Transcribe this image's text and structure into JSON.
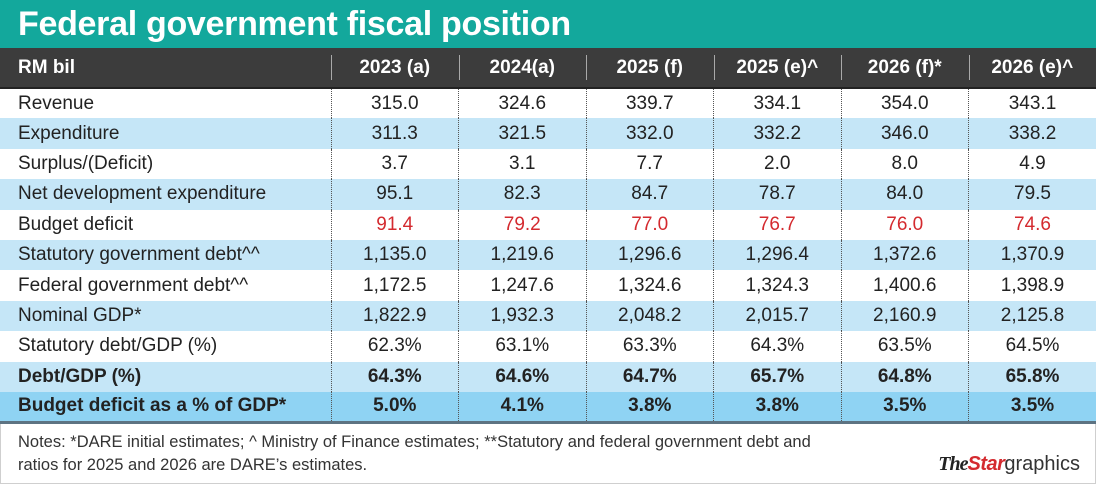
{
  "title": "Federal government fiscal position",
  "chart_data": {
    "type": "table",
    "title": "Federal government fiscal position",
    "unit_label": "RM bil",
    "columns": [
      "2023 (a)",
      "2024(a)",
      "2025 (f)",
      "2025 (e)^",
      "2026 (f)*",
      "2026 (e)^"
    ],
    "rows": [
      {
        "label": "Revenue",
        "values": [
          "315.0",
          "324.6",
          "339.7",
          "334.1",
          "354.0",
          "343.1"
        ]
      },
      {
        "label": "Expenditure",
        "values": [
          "311.3",
          "321.5",
          "332.0",
          "332.2",
          "346.0",
          "338.2"
        ]
      },
      {
        "label": "Surplus/(Deficit)",
        "values": [
          "3.7",
          "3.1",
          "7.7",
          "2.0",
          "8.0",
          "4.9"
        ]
      },
      {
        "label": "Net development expenditure",
        "values": [
          "95.1",
          "82.3",
          "84.7",
          "78.7",
          "84.0",
          "79.5"
        ]
      },
      {
        "label": "Budget deficit",
        "values": [
          "91.4",
          "79.2",
          "77.0",
          "76.7",
          "76.0",
          "74.6"
        ]
      },
      {
        "label": "Statutory government debt^^",
        "values": [
          "1,135.0",
          "1,219.6",
          "1,296.6",
          "1,296.4",
          "1,372.6",
          "1,370.9"
        ]
      },
      {
        "label": "Federal government debt^^",
        "values": [
          "1,172.5",
          "1,247.6",
          "1,324.6",
          "1,324.3",
          "1,400.6",
          "1,398.9"
        ]
      },
      {
        "label": "Nominal GDP*",
        "values": [
          "1,822.9",
          "1,932.3",
          "2,048.2",
          "2,015.7",
          "2,160.9",
          "2,125.8"
        ]
      },
      {
        "label": "Statutory debt/GDP (%)",
        "values": [
          "62.3%",
          "63.1%",
          "63.3%",
          "64.3%",
          "63.5%",
          "64.5%"
        ]
      },
      {
        "label": "Debt/GDP (%)",
        "values": [
          "64.3%",
          "64.6%",
          "64.7%",
          "65.7%",
          "64.8%",
          "65.8%"
        ]
      },
      {
        "label": "Budget deficit as a % of GDP*",
        "values": [
          "5.0%",
          "4.1%",
          "3.8%",
          "3.8%",
          "3.5%",
          "3.5%"
        ]
      }
    ]
  },
  "colors": {
    "title_bar": "#13a89c",
    "header_row": "#3c3c3c",
    "row_alt": "#c5e6f7",
    "row_highlight": "#8fd3f3",
    "budget_deficit_text": "#d42a2f"
  },
  "notes": "Notes: *DARE initial estimates; ^ Ministry of Finance estimates; **Statutory and federal government debt and ratios for 2025 and 2026 are DARE’s estimates.",
  "logo": {
    "the": "The",
    "star": "Star",
    "graphics": "graphics"
  }
}
